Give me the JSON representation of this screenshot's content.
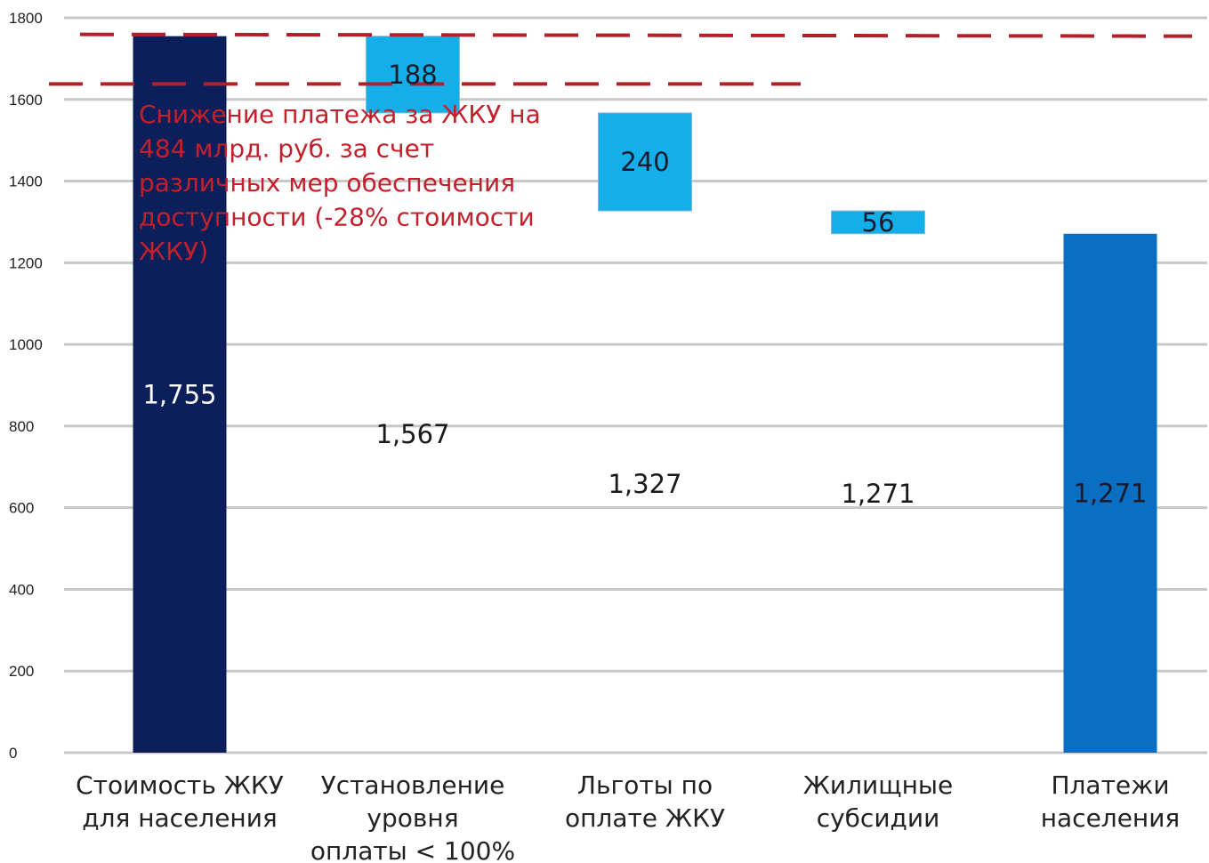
{
  "chart_data": {
    "type": "waterfall",
    "title": "",
    "xlabel": "",
    "ylabel": "",
    "ylim": [
      0,
      1800
    ],
    "yticks": [
      0,
      200,
      400,
      600,
      800,
      1000,
      1200,
      1400,
      1600,
      1800
    ],
    "grid": true,
    "legend": "none",
    "categories": [
      [
        "Стоимость ЖКУ",
        "для населения"
      ],
      [
        "Установление",
        "уровня",
        "оплаты < 100%"
      ],
      [
        "Льготы по",
        "оплате ЖКУ"
      ],
      [
        "Жилищные",
        "субсидии"
      ],
      [
        "Платежи",
        "населения"
      ]
    ],
    "bars": [
      {
        "base": 0,
        "top": 1755,
        "kind": "total",
        "label": "1,755"
      },
      {
        "base": 1567,
        "top": 1755,
        "kind": "decrease",
        "label": "188",
        "base_label": "1,567"
      },
      {
        "base": 1327,
        "top": 1567,
        "kind": "decrease",
        "label": "240",
        "base_label": "1,327"
      },
      {
        "base": 1271,
        "top": 1327,
        "kind": "decrease",
        "label": "56",
        "base_label": "1,271"
      },
      {
        "base": 0,
        "top": 1271,
        "kind": "result",
        "label": "1,271"
      }
    ],
    "reference_lines": [
      1755,
      1640
    ],
    "annotation": [
      "Снижение платежа за ЖКУ на",
      "484 млрд. руб. за счет",
      "различных мер обеспечения",
      "доступности (-28% стоимости",
      "ЖКУ)"
    ],
    "colors": {
      "total": "#0c1f5b",
      "decrease": "#14aee9",
      "result": "#0a6fc2",
      "grid": "#c8c8c8",
      "reference": "#b3202a",
      "annotation": "#c3202b"
    }
  }
}
